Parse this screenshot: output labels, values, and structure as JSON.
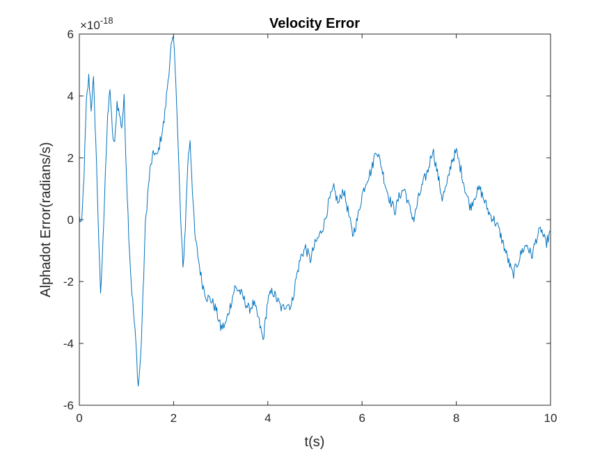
{
  "chart_data": {
    "type": "line",
    "title": "Velocity Error",
    "xlabel": "t(s)",
    "ylabel": "Alphadot Error(radians/s)",
    "exponent_label": "×10",
    "exponent_power": "-18",
    "xlim": [
      0,
      10
    ],
    "ylim": [
      -6,
      6
    ],
    "x_ticks": [
      "0",
      "2",
      "4",
      "6",
      "8",
      "10"
    ],
    "y_ticks": [
      "-6",
      "-4",
      "-2",
      "0",
      "2",
      "4",
      "6"
    ],
    "grid": false,
    "line_color": "#0072BD",
    "series": [
      {
        "x": [
          0,
          0.05,
          0.1,
          0.15,
          0.2,
          0.25,
          0.3,
          0.35,
          0.4,
          0.45,
          0.5,
          0.55,
          0.6,
          0.65,
          0.7,
          0.75,
          0.8,
          0.85,
          0.9,
          0.95,
          1.0,
          1.05,
          1.1,
          1.15,
          1.2,
          1.25,
          1.3,
          1.35,
          1.4,
          1.45,
          1.5,
          1.55,
          1.6,
          1.65,
          1.7,
          1.75,
          1.8,
          1.85,
          1.9,
          1.95,
          2.0,
          2.05,
          2.1,
          2.15,
          2.2,
          2.25,
          2.3,
          2.35,
          2.4,
          2.45,
          2.5,
          2.55,
          2.6,
          2.7,
          2.8,
          2.9,
          3.0,
          3.1,
          3.2,
          3.3,
          3.4,
          3.5,
          3.6,
          3.7,
          3.8,
          3.9,
          4.0,
          4.1,
          4.2,
          4.3,
          4.4,
          4.5,
          4.6,
          4.7,
          4.8,
          4.9,
          5.0,
          5.1,
          5.2,
          5.3,
          5.4,
          5.5,
          5.6,
          5.7,
          5.8,
          5.9,
          6.0,
          6.1,
          6.2,
          6.3,
          6.4,
          6.5,
          6.6,
          6.7,
          6.8,
          6.9,
          7.0,
          7.1,
          7.2,
          7.3,
          7.4,
          7.5,
          7.6,
          7.7,
          7.8,
          7.9,
          8.0,
          8.1,
          8.2,
          8.3,
          8.4,
          8.5,
          8.6,
          8.7,
          8.8,
          8.9,
          9.0,
          9.1,
          9.2,
          9.3,
          9.4,
          9.5,
          9.6,
          9.7,
          9.8,
          9.9,
          10.0
        ],
        "y": [
          0.1,
          -0.2,
          1.5,
          3.8,
          4.6,
          3.6,
          4.5,
          2.5,
          0.0,
          -2.5,
          -0.8,
          1.5,
          3.2,
          4.3,
          2.8,
          2.4,
          3.8,
          3.4,
          3.0,
          3.9,
          1.5,
          -0.5,
          -2.0,
          -3.0,
          -4.0,
          -5.4,
          -4.5,
          -2.5,
          -0.2,
          0.8,
          1.6,
          2.0,
          2.2,
          2.0,
          2.4,
          2.8,
          3.2,
          4.0,
          4.8,
          5.6,
          5.8,
          4.5,
          2.2,
          0.0,
          -1.6,
          -0.2,
          1.8,
          2.6,
          1.0,
          -0.5,
          -1.0,
          -1.5,
          -2.0,
          -2.5,
          -2.6,
          -2.9,
          -3.5,
          -3.4,
          -2.8,
          -2.2,
          -2.3,
          -2.6,
          -2.9,
          -2.7,
          -3.2,
          -3.9,
          -2.6,
          -2.3,
          -2.6,
          -2.9,
          -2.7,
          -2.8,
          -1.9,
          -1.2,
          -0.9,
          -1.3,
          -0.8,
          -0.5,
          -0.1,
          0.6,
          1.0,
          0.5,
          1.0,
          0.3,
          -0.5,
          0.0,
          0.8,
          1.3,
          1.6,
          2.3,
          1.8,
          1.1,
          0.6,
          0.3,
          0.8,
          1.0,
          0.4,
          0.0,
          0.7,
          1.2,
          1.6,
          2.3,
          1.5,
          0.7,
          1.1,
          1.9,
          2.2,
          1.6,
          0.9,
          0.4,
          0.8,
          1.0,
          0.6,
          0.2,
          0.0,
          -0.3,
          -0.8,
          -1.3,
          -1.8,
          -1.4,
          -1.0,
          -0.8,
          -1.2,
          -0.6,
          -0.3,
          -0.8,
          -0.4
        ]
      }
    ]
  }
}
